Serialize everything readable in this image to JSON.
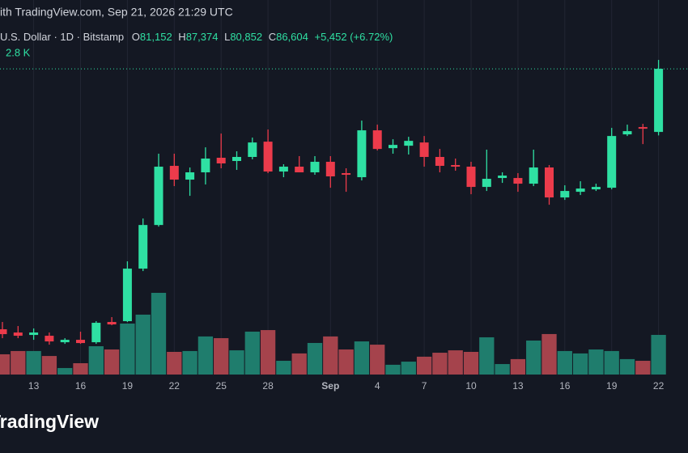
{
  "header": {
    "source": "ith TradingView.com, Sep 21, 2026 21:29 UTC",
    "symbol": "U.S. Dollar · 1D · Bitstamp",
    "ohlc": [
      {
        "key": "O",
        "value": "81,152"
      },
      {
        "key": "H",
        "value": "87,374"
      },
      {
        "key": "L",
        "value": "80,852"
      },
      {
        "key": "C",
        "value": "86,604"
      }
    ],
    "change": "+5,452 (+6.72%)"
  },
  "watermark": "TradingView",
  "chart_data": {
    "type": "candlestick",
    "categories": [
      null,
      null,
      "13",
      null,
      null,
      "16",
      null,
      null,
      "19",
      null,
      null,
      "22",
      null,
      null,
      "25",
      null,
      null,
      "28",
      null,
      null,
      null,
      "Sep",
      null,
      null,
      "4",
      null,
      null,
      "7",
      null,
      null,
      "10",
      null,
      null,
      "13",
      null,
      null,
      "16",
      null,
      null,
      "19",
      null,
      null,
      "22"
    ],
    "open": [
      64100,
      63820,
      63610,
      63540,
      62980,
      63190,
      62980,
      64730,
      64800,
      69340,
      73110,
      78220,
      77030,
      77660,
      78920,
      78640,
      78990,
      80310,
      77730,
      78150,
      77660,
      78570,
      77590,
      77240,
      81290,
      79750,
      79960,
      80240,
      78990,
      78290,
      78150,
      76400,
      77170,
      77170,
      76680,
      78080,
      75490,
      75980,
      76190,
      76330,
      80940,
      81570,
      81152
    ],
    "high": [
      64730,
      64380,
      64170,
      63820,
      63330,
      63890,
      64800,
      65150,
      69970,
      73670,
      79270,
      79270,
      78080,
      79820,
      81010,
      79480,
      80660,
      81360,
      78360,
      79060,
      79060,
      79060,
      78010,
      82130,
      81780,
      80520,
      80730,
      80800,
      79680,
      78850,
      78570,
      79620,
      77660,
      77590,
      79620,
      78290,
      76540,
      76890,
      76680,
      81500,
      81780,
      81850,
      87374
    ],
    "low": [
      63330,
      63330,
      63190,
      62770,
      62840,
      62840,
      62840,
      64450,
      64730,
      69130,
      72970,
      76470,
      75630,
      76610,
      78010,
      77870,
      78780,
      77590,
      77240,
      77660,
      77450,
      76330,
      75980,
      76960,
      79550,
      79270,
      79200,
      78150,
      77660,
      77800,
      75770,
      76050,
      76750,
      75980,
      76470,
      74860,
      75280,
      75700,
      76050,
      76190,
      80800,
      80100,
      80852
    ],
    "close": [
      63680,
      63540,
      63820,
      63050,
      63190,
      62910,
      64660,
      64520,
      69340,
      73110,
      78150,
      77030,
      77660,
      78850,
      78430,
      78990,
      80240,
      77730,
      78150,
      77660,
      78570,
      77310,
      77450,
      81290,
      79680,
      80030,
      80380,
      78990,
      78220,
      78150,
      76400,
      77100,
      77380,
      76680,
      78080,
      75490,
      76050,
      76260,
      76400,
      80800,
      81220,
      81430,
      86604
    ],
    "volume": [
      1.43,
      1.66,
      1.66,
      1.31,
      0.46,
      0.8,
      2.0,
      1.77,
      3.6,
      4.23,
      5.77,
      1.6,
      1.66,
      2.69,
      2.57,
      1.71,
      3.03,
      3.14,
      0.97,
      1.49,
      2.23,
      2.69,
      1.77,
      2.34,
      2.11,
      0.69,
      0.91,
      1.26,
      1.54,
      1.71,
      1.6,
      2.63,
      0.74,
      1.09,
      2.4,
      2.86,
      1.66,
      1.49,
      1.77,
      1.66,
      1.09,
      0.97,
      2.8
    ],
    "volume_last_label": "2.8 K",
    "ylim": [
      59700,
      92550
    ],
    "volume_ylim": [
      0,
      8.57
    ],
    "colors": {
      "up": "#2fe0a3",
      "down": "#ec3b4b",
      "volume_up": "#1f7d6d",
      "volume_down": "#a5434c"
    },
    "last_price_line": true
  }
}
